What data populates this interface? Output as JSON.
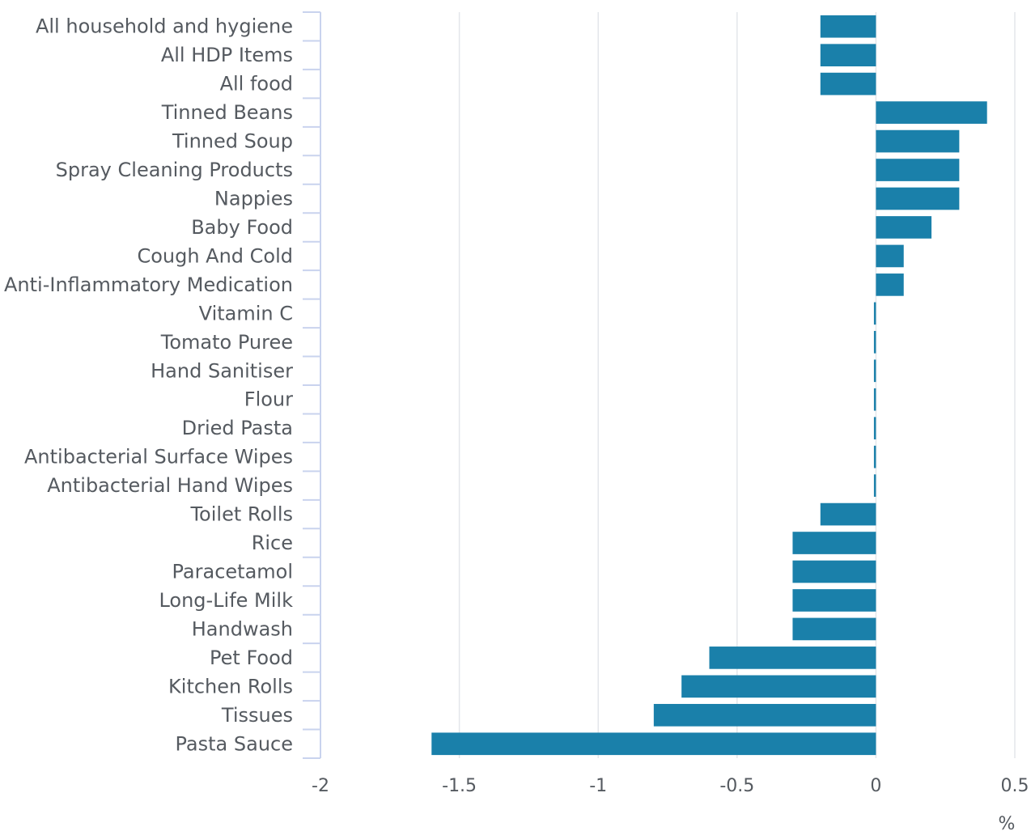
{
  "chart_data": {
    "type": "bar",
    "orientation": "horizontal",
    "categories": [
      "All household and hygiene",
      "All HDP Items",
      "All food",
      "Tinned Beans",
      "Tinned Soup",
      "Spray Cleaning Products",
      "Nappies",
      "Baby Food",
      "Cough And Cold",
      "Anti-Inflammatory Medication",
      "Vitamin C",
      "Tomato Puree",
      "Hand Sanitiser",
      "Flour",
      "Dried Pasta",
      "Antibacterial Surface Wipes",
      "Antibacterial Hand Wipes",
      "Toilet Rolls",
      "Rice",
      "Paracetamol",
      "Long-Life Milk",
      "Handwash",
      "Pet Food",
      "Kitchen Rolls",
      "Tissues",
      "Pasta Sauce"
    ],
    "values": [
      -0.2,
      -0.2,
      -0.2,
      0.4,
      0.3,
      0.3,
      0.3,
      0.2,
      0.1,
      0.1,
      0.0,
      0.0,
      0.0,
      0.0,
      0.0,
      0.0,
      0.0,
      -0.2,
      -0.3,
      -0.3,
      -0.3,
      -0.3,
      -0.6,
      -0.7,
      -0.8,
      -1.6
    ],
    "xlim": [
      -2,
      0.5
    ],
    "xticks": [
      -2,
      -1.5,
      -1,
      -0.5,
      0,
      0.5
    ],
    "xtick_labels": [
      "-2",
      "-1.5",
      "-1",
      "-0.5",
      "0",
      "0.5"
    ],
    "xunit": "%",
    "grid": "vertical",
    "bar_color": "#1a80aa",
    "title": "",
    "xlabel": "",
    "ylabel": ""
  }
}
